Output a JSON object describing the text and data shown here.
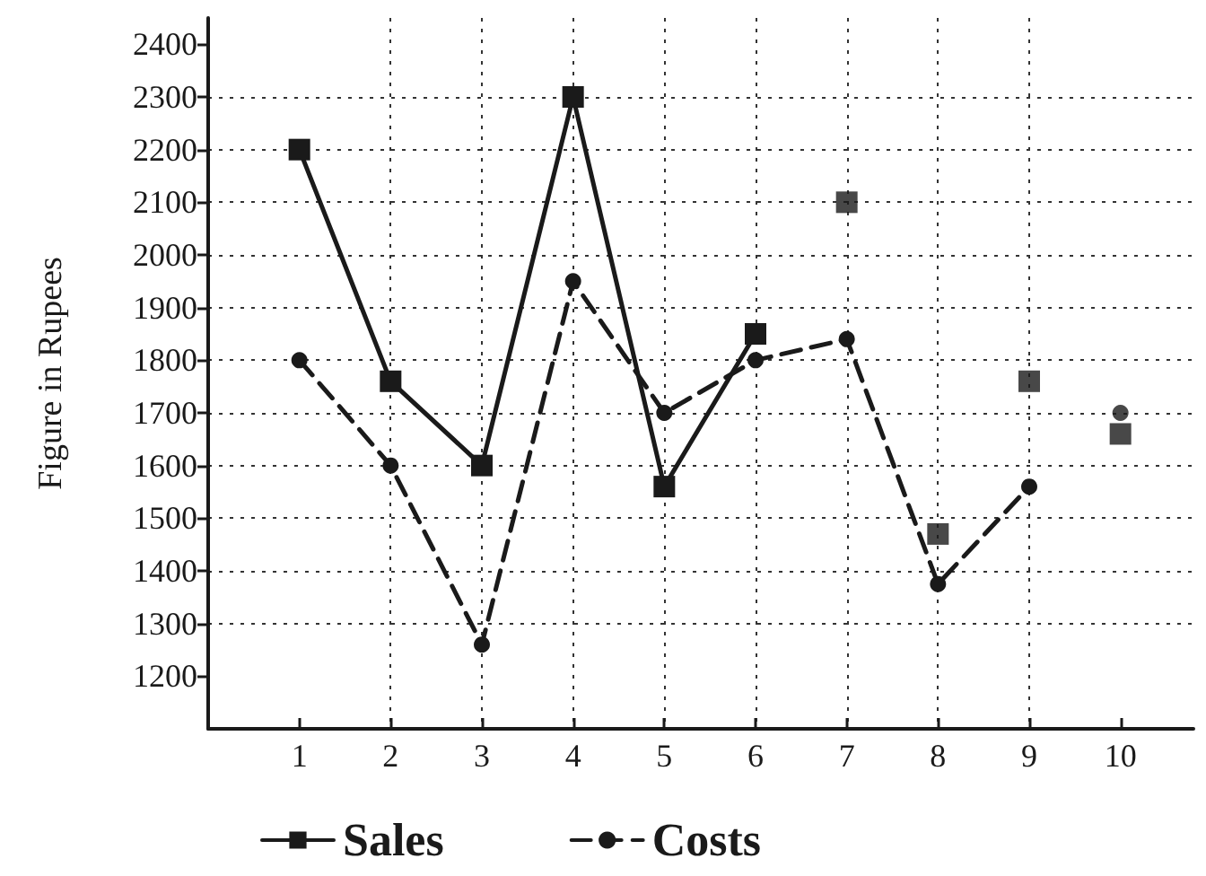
{
  "chart_data": {
    "type": "line",
    "ylabel": "Figure in Rupees",
    "x": [
      1,
      2,
      3,
      4,
      5,
      6,
      7,
      8,
      9,
      10
    ],
    "series": [
      {
        "name": "Sales",
        "color": "#1a1a1a",
        "marker": "square",
        "line_style": "solid",
        "values": [
          2200,
          1760,
          1600,
          2300,
          1560,
          1850,
          null,
          null,
          null,
          null
        ]
      },
      {
        "type": "scatter",
        "color": "#1a1a1a",
        "marker": "square",
        "values": [
          null,
          null,
          null,
          null,
          null,
          null,
          2100,
          1470,
          1760,
          1660
        ]
      },
      {
        "name": "Costs",
        "color": "#1a1a1a",
        "marker": "circle",
        "line_style": "dashed",
        "values": [
          1800,
          1600,
          1260,
          1950,
          1700,
          1800,
          1840,
          1375,
          1560,
          null
        ]
      },
      {
        "type": "scatter",
        "color": "#1a1a1a",
        "marker": "circle",
        "values": [
          null,
          null,
          null,
          null,
          null,
          null,
          null,
          null,
          null,
          1700
        ]
      }
    ],
    "xlim": [
      0,
      10.8
    ],
    "xticks": [
      1,
      2,
      3,
      4,
      5,
      6,
      7,
      8,
      9,
      10
    ],
    "ylim": [
      1100,
      2450
    ],
    "yticks": [
      1200,
      1300,
      1400,
      1500,
      1600,
      1700,
      1800,
      1900,
      2000,
      2100,
      2200,
      2300,
      2400
    ],
    "grid": true,
    "legend": "bottom"
  }
}
